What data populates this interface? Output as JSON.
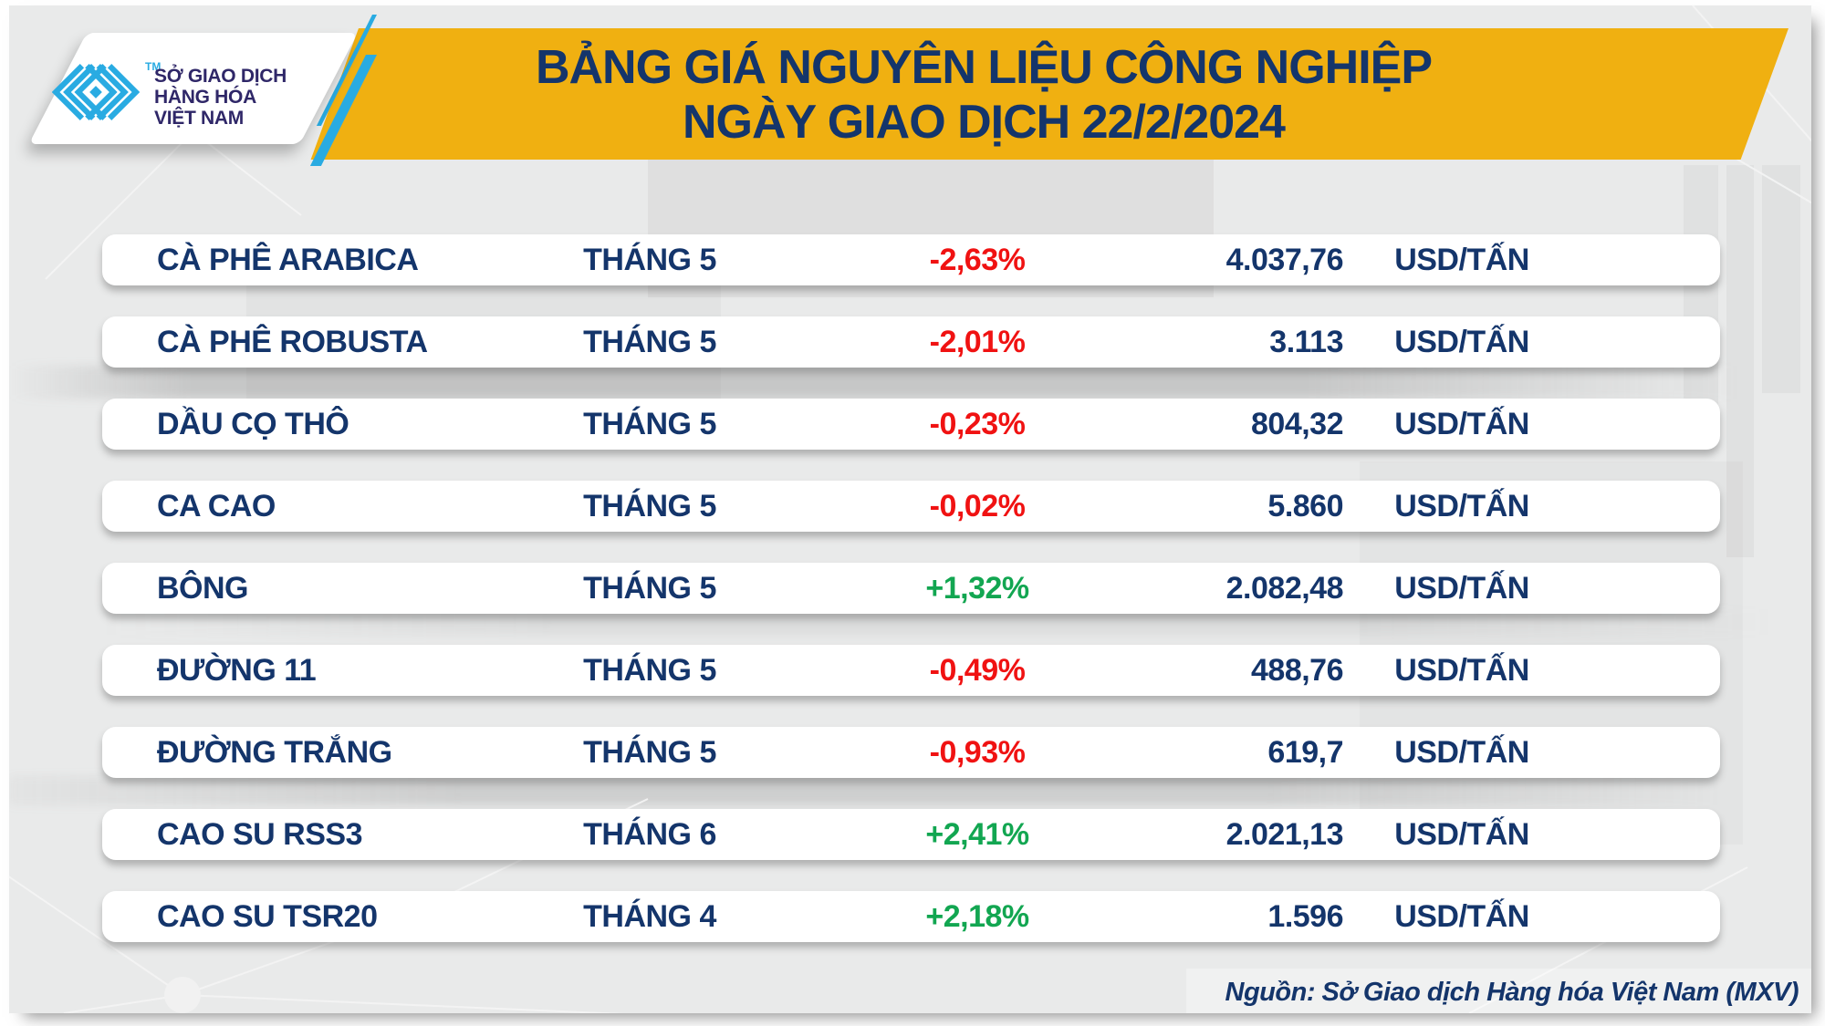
{
  "title": {
    "line1": "BẢNG GIÁ NGUYÊN LIỆU CÔNG NGHIỆP",
    "line2": "NGÀY GIAO DỊCH 22/2/2024"
  },
  "logo": {
    "mark": "mxv-chevron-diamond-logo",
    "trademark": "TM",
    "line1": "SỞ GIAO DỊCH",
    "line2": "HÀNG HÓA",
    "line3": "VIỆT NAM"
  },
  "footer": {
    "source": "Nguồn: Sở Giao dịch Hàng hóa Việt Nam (MXV)"
  },
  "colors": {
    "banner_yellow": "#f0b011",
    "navy": "#14356b",
    "red_down": "#f01212",
    "green_up": "#12a651",
    "logo_blue": "#29abe2",
    "logo_text": "#2f2768",
    "background": "#e9eaea"
  },
  "chart_data": {
    "type": "table",
    "title": "BẢNG GIÁ NGUYÊN LIỆU CÔNG NGHIỆP",
    "subtitle": "NGÀY GIAO DỊCH 22/2/2024",
    "columns": [
      "commodity",
      "contract_month",
      "change_percent",
      "price",
      "unit"
    ],
    "rows": [
      {
        "name": "CÀ PHÊ ARABICA",
        "month": "THÁNG 5",
        "change": "-2,63%",
        "change_value": -2.63,
        "direction": "down",
        "price": "4.037,76",
        "price_value": 4037.76,
        "unit": "USD/TẤN"
      },
      {
        "name": "CÀ PHÊ ROBUSTA",
        "month": "THÁNG 5",
        "change": "-2,01%",
        "change_value": -2.01,
        "direction": "down",
        "price": "3.113",
        "price_value": 3113,
        "unit": "USD/TẤN"
      },
      {
        "name": "DẦU CỌ THÔ",
        "month": "THÁNG 5",
        "change": "-0,23%",
        "change_value": -0.23,
        "direction": "down",
        "price": "804,32",
        "price_value": 804.32,
        "unit": "USD/TẤN"
      },
      {
        "name": "CA CAO",
        "month": "THÁNG 5",
        "change": "-0,02%",
        "change_value": -0.02,
        "direction": "down",
        "price": "5.860",
        "price_value": 5860,
        "unit": "USD/TẤN"
      },
      {
        "name": "BÔNG",
        "month": "THÁNG 5",
        "change": "+1,32%",
        "change_value": 1.32,
        "direction": "up",
        "price": "2.082,48",
        "price_value": 2082.48,
        "unit": "USD/TẤN"
      },
      {
        "name": "ĐƯỜNG 11",
        "month": "THÁNG 5",
        "change": "-0,49%",
        "change_value": -0.49,
        "direction": "down",
        "price": "488,76",
        "price_value": 488.76,
        "unit": "USD/TẤN"
      },
      {
        "name": "ĐƯỜNG TRẮNG",
        "month": "THÁNG 5",
        "change": "-0,93%",
        "change_value": -0.93,
        "direction": "down",
        "price": "619,7",
        "price_value": 619.7,
        "unit": "USD/TẤN"
      },
      {
        "name": "CAO SU RSS3",
        "month": "THÁNG 6",
        "change": "+2,41%",
        "change_value": 2.41,
        "direction": "up",
        "price": "2.021,13",
        "price_value": 2021.13,
        "unit": "USD/TẤN"
      },
      {
        "name": "CAO SU TSR20",
        "month": "THÁNG 4",
        "change": "+2,18%",
        "change_value": 2.18,
        "direction": "up",
        "price": "1.596",
        "price_value": 1596,
        "unit": "USD/TẤN"
      }
    ]
  }
}
